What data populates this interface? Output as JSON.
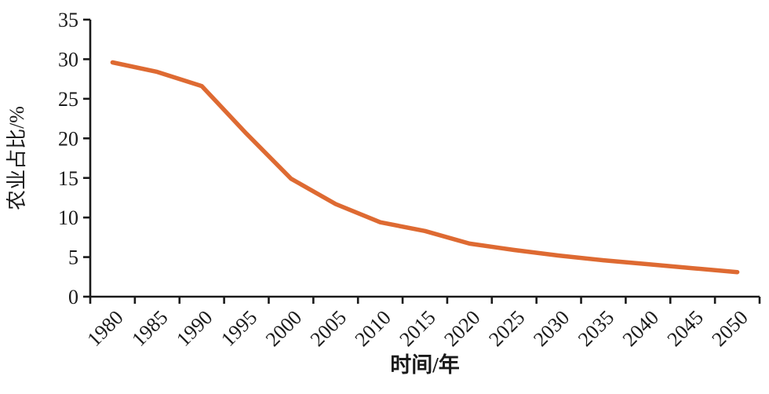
{
  "chart_data": {
    "type": "line",
    "title": "",
    "categories": [
      "1980",
      "1985",
      "1990",
      "1995",
      "2000",
      "2005",
      "2010",
      "2015",
      "2020",
      "2025",
      "2030",
      "2035",
      "2040",
      "2045",
      "2050"
    ],
    "series": [
      {
        "name": "农业占比",
        "values": [
          29.6,
          28.4,
          26.6,
          20.6,
          14.9,
          11.7,
          9.4,
          8.3,
          6.7,
          5.9,
          5.2,
          4.6,
          4.1,
          3.6,
          3.1
        ],
        "color": "#DE6A32"
      }
    ],
    "xlabel": "时间/年",
    "ylabel": "农业占比/%",
    "ylim": [
      0,
      35
    ],
    "ytick_step": 5,
    "yticks": [
      0,
      5,
      10,
      15,
      20,
      25,
      30,
      35
    ],
    "x_label_rotation_deg": -45,
    "grid": false,
    "legend_position": "none",
    "axis_color": "#1a1a1a",
    "background_color": "#ffffff"
  }
}
